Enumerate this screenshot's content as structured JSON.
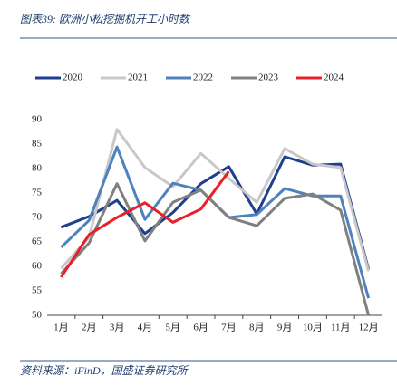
{
  "chart_data": {
    "type": "line",
    "title": "图表39:  欧洲小松挖掘机开工小时数",
    "source": "资料来源：iFinD，国盛证券研究所",
    "categories": [
      "1月",
      "2月",
      "3月",
      "4月",
      "5月",
      "6月",
      "7月",
      "8月",
      "9月",
      "10月",
      "11月",
      "12月"
    ],
    "series": [
      {
        "name": "2020",
        "color": "#1f3f8f",
        "values": [
          68,
          70.2,
          73.5,
          66.7,
          71,
          76.9,
          80.4,
          70.7,
          82.4,
          80.7,
          80.9,
          59.4
        ]
      },
      {
        "name": "2021",
        "color": "#c8c8c8",
        "values": [
          59.6,
          66,
          88,
          80.2,
          76.3,
          83.1,
          78,
          73.1,
          84.1,
          80.9,
          80.2,
          59
        ]
      },
      {
        "name": "2022",
        "color": "#4f81bd",
        "values": [
          63.9,
          69.4,
          84.4,
          69.6,
          77,
          75.6,
          70,
          70.6,
          75.9,
          74.4,
          74.4,
          53.5
        ]
      },
      {
        "name": "2023",
        "color": "#808080",
        "values": [
          58.5,
          64.8,
          76.9,
          65.2,
          73.1,
          75.6,
          70,
          68.3,
          73.9,
          74.8,
          71.5,
          50
        ]
      },
      {
        "name": "2024",
        "color": "#e8202a",
        "values": [
          57.8,
          66.5,
          70,
          73,
          69,
          71.7,
          79.4,
          null,
          null,
          null,
          null,
          null
        ]
      }
    ],
    "ylim": [
      50,
      90
    ],
    "yticks": [
      50,
      55,
      60,
      65,
      70,
      75,
      80,
      85,
      90
    ],
    "grid": false
  }
}
